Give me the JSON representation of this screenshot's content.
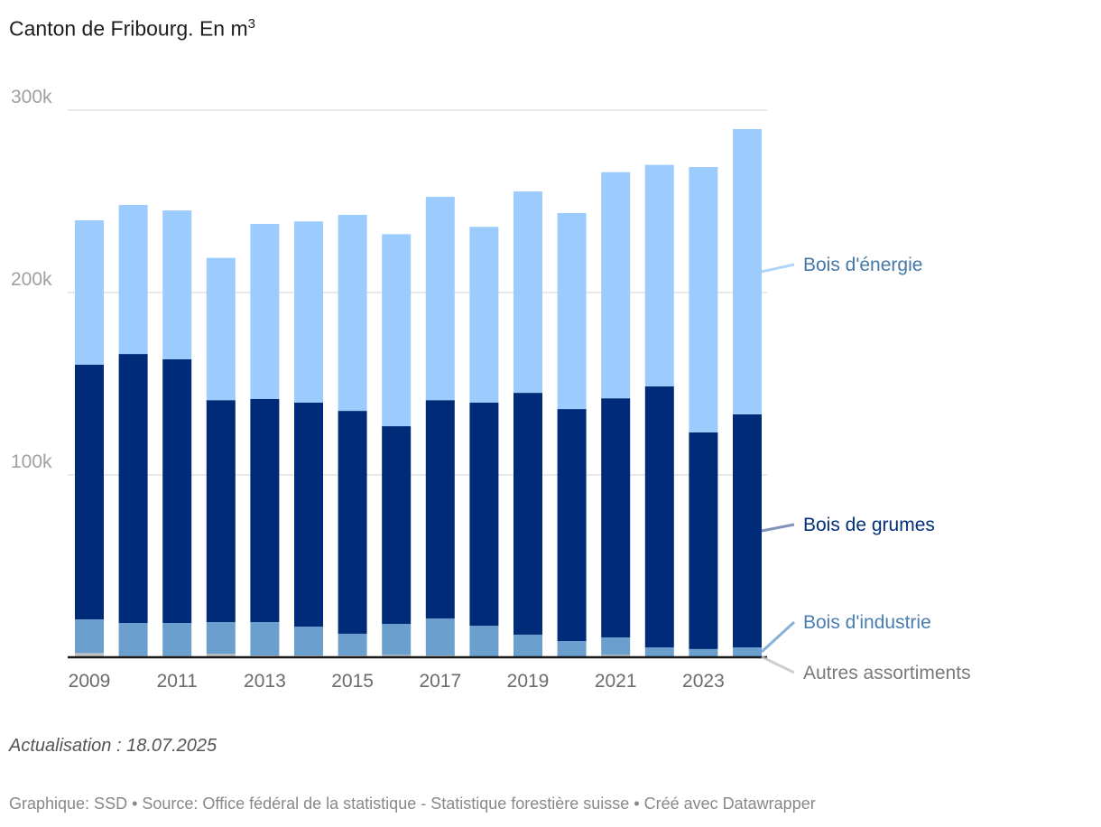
{
  "title": "Canton de Fribourg. En m",
  "title_superscript": "3",
  "note": "Actualisation : 18.07.2025",
  "footer": "Graphique: SSD • Source: Office fédéral de la statistique - Statistique forestière suisse • Créé avec Datawrapper",
  "chart_data": {
    "type": "bar",
    "stacked": true,
    "categories": [
      "2009",
      "2010",
      "2011",
      "2012",
      "2013",
      "2014",
      "2015",
      "2016",
      "2017",
      "2018",
      "2019",
      "2020",
      "2021",
      "2022",
      "2023",
      "2024"
    ],
    "x_tick_labels": [
      "2009",
      "2011",
      "2013",
      "2015",
      "2017",
      "2019",
      "2021",
      "2023"
    ],
    "y_ticks": [
      {
        "value": 100000,
        "label": "100k"
      },
      {
        "value": 200000,
        "label": "200k"
      },
      {
        "value": 300000,
        "label": "300k"
      }
    ],
    "ylim": [
      0,
      300000
    ],
    "grid": true,
    "legend_placement": "right, inline labels",
    "series": [
      {
        "name": "Autres assortiments",
        "color": "#c2c2c2",
        "label_color": "#7a7a7a",
        "values": [
          2300,
          700,
          700,
          1800,
          1000,
          1000,
          1000,
          1300,
          1000,
          300,
          200,
          200,
          1300,
          500,
          500,
          500
        ]
      },
      {
        "name": "Bois d'industrie",
        "color": "#6a9fce",
        "label_color": "#4a7db2",
        "values": [
          18500,
          18100,
          18100,
          17500,
          18300,
          15800,
          11900,
          17000,
          20300,
          17000,
          12200,
          8700,
          9600,
          4900,
          4000,
          4900
        ]
      },
      {
        "name": "Bois de grumes",
        "color": "#002b78",
        "label_color": "#00307a",
        "values": [
          139600,
          147500,
          144600,
          121700,
          122300,
          122800,
          122200,
          108400,
          119700,
          122300,
          132600,
          127200,
          131100,
          143100,
          118800,
          127800
        ]
      },
      {
        "name": "Bois d'énergie",
        "color": "#9ccbfd",
        "label_color": "#4577a9",
        "values": [
          79200,
          81700,
          81600,
          78000,
          96000,
          99400,
          107500,
          105300,
          111500,
          96400,
          110400,
          107500,
          124000,
          121500,
          145500,
          156400
        ]
      }
    ]
  }
}
